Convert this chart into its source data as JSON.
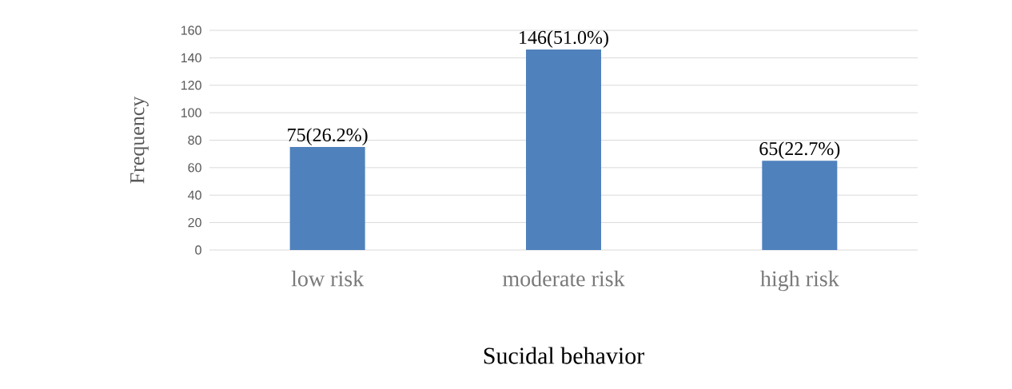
{
  "chart_data": {
    "type": "bar",
    "categories": [
      "low risk",
      "moderate risk",
      "high risk"
    ],
    "values": [
      75,
      146,
      65
    ],
    "value_labels": [
      "75(26.2%)",
      "146(51.0%)",
      "65(22.7%)"
    ],
    "color": "#4f81bd",
    "xlabel": "Sucidal  behavior",
    "ylabel": "Frequency",
    "ylim": [
      0,
      160
    ],
    "yticks": [
      0,
      20,
      40,
      60,
      80,
      100,
      120,
      140,
      160
    ],
    "grid": "y"
  }
}
